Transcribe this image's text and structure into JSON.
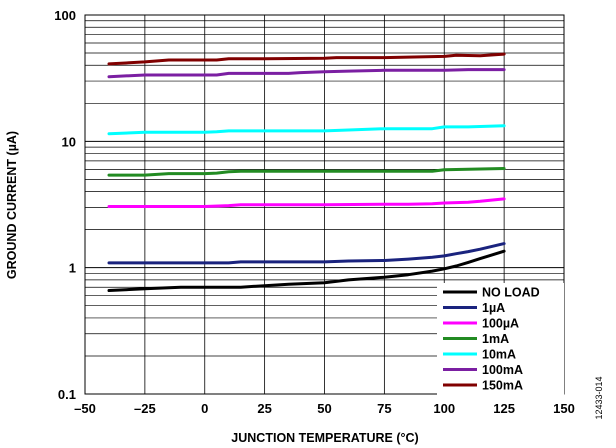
{
  "chart_data": {
    "type": "line",
    "title": "",
    "xlabel": "JUNCTION TEMPERATURE (°C)",
    "ylabel": "GROUND CURRENT (µA)",
    "xlim": [
      -50,
      150
    ],
    "ylim": [
      0.1,
      100
    ],
    "yscale": "log",
    "grid": true,
    "legend_position": "bottom-right",
    "x_ticks": [
      "–50",
      "–25",
      "0",
      "25",
      "50",
      "75",
      "100",
      "125",
      "150"
    ],
    "y_ticks": [
      "0.1",
      "1",
      "10",
      "100"
    ],
    "figure_id": "12433-014",
    "series": [
      {
        "name": "NO LOAD",
        "color": "#000000",
        "x": [
          -40,
          -25,
          -10,
          0,
          15,
          25,
          35,
          50,
          60,
          75,
          85,
          95,
          100,
          105,
          110,
          115,
          125
        ],
        "y": [
          0.66,
          0.68,
          0.7,
          0.7,
          0.7,
          0.72,
          0.74,
          0.76,
          0.8,
          0.84,
          0.88,
          0.94,
          0.98,
          1.03,
          1.1,
          1.18,
          1.35
        ]
      },
      {
        "name": "1µA",
        "color": "#1a237e",
        "x": [
          -40,
          -25,
          0,
          10,
          15,
          25,
          50,
          60,
          75,
          85,
          95,
          100,
          105,
          110,
          115,
          125
        ],
        "y": [
          1.09,
          1.09,
          1.09,
          1.09,
          1.11,
          1.11,
          1.11,
          1.13,
          1.14,
          1.17,
          1.21,
          1.24,
          1.29,
          1.34,
          1.4,
          1.55
        ]
      },
      {
        "name": "100µA",
        "color": "#ff00ff",
        "x": [
          -40,
          -25,
          0,
          10,
          15,
          25,
          50,
          75,
          85,
          95,
          100,
          110,
          115,
          125
        ],
        "y": [
          3.05,
          3.05,
          3.05,
          3.1,
          3.15,
          3.15,
          3.15,
          3.18,
          3.18,
          3.2,
          3.25,
          3.3,
          3.35,
          3.5
        ]
      },
      {
        "name": "1mA",
        "color": "#228b22",
        "x": [
          -40,
          -25,
          -15,
          0,
          5,
          10,
          15,
          25,
          50,
          75,
          95,
          100,
          125
        ],
        "y": [
          5.4,
          5.4,
          5.55,
          5.55,
          5.6,
          5.75,
          5.8,
          5.8,
          5.8,
          5.8,
          5.8,
          5.95,
          6.1
        ]
      },
      {
        "name": "10mA",
        "color": "#00ffff",
        "x": [
          -40,
          -25,
          0,
          5,
          10,
          25,
          50,
          60,
          75,
          95,
          100,
          110,
          125
        ],
        "y": [
          11.5,
          11.8,
          11.8,
          11.9,
          12.1,
          12.1,
          12.1,
          12.3,
          12.6,
          12.6,
          13.0,
          13.0,
          13.3
        ]
      },
      {
        "name": "100mA",
        "color": "#7b1fa2",
        "x": [
          -40,
          -25,
          -15,
          5,
          10,
          25,
          35,
          40,
          50,
          60,
          75,
          100,
          110,
          125
        ],
        "y": [
          32.5,
          33.5,
          33.5,
          33.5,
          34.5,
          34.5,
          34.5,
          35.0,
          35.5,
          36.0,
          36.5,
          36.5,
          37.0,
          37.0
        ]
      },
      {
        "name": "150mA",
        "color": "#800000",
        "x": [
          -40,
          -25,
          -15,
          5,
          10,
          25,
          50,
          55,
          75,
          100,
          105,
          115,
          125
        ],
        "y": [
          41.0,
          42.5,
          44.0,
          44.0,
          45.0,
          45.0,
          45.5,
          46.0,
          46.0,
          47.0,
          48.0,
          47.5,
          49.0
        ]
      }
    ]
  }
}
